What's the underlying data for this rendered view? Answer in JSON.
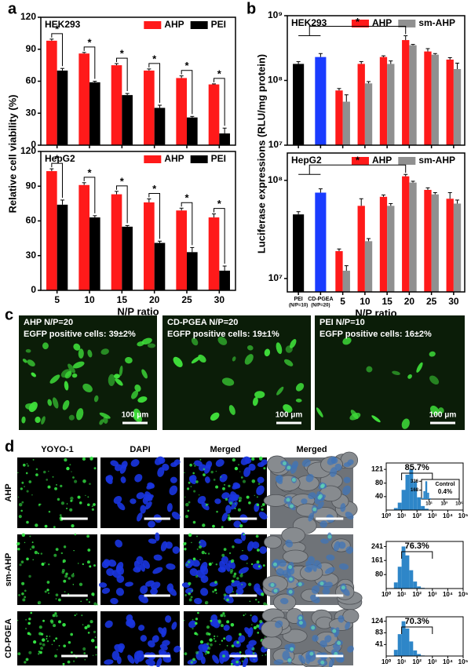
{
  "panel_labels": [
    "a",
    "b",
    "c",
    "d"
  ],
  "chart_data": [
    {
      "type": "bar",
      "title": "HEK293",
      "ylabel": "Relative cell viability (%)",
      "series": [
        {
          "name": "AHP",
          "color": "#ff1a1a",
          "values": [
            98,
            86,
            75,
            70,
            63,
            57
          ],
          "errors": [
            1.5,
            1,
            1.5,
            1.5,
            2,
            0.5
          ]
        },
        {
          "name": "PEI",
          "color": "#000000",
          "values": [
            70,
            59,
            47,
            35,
            26,
            11
          ],
          "errors": [
            2,
            1,
            1.5,
            2.5,
            1,
            5
          ]
        }
      ],
      "ylim": [
        0,
        120
      ],
      "yticks": [
        0,
        30,
        60,
        90,
        120
      ],
      "significance": [
        "*",
        "*",
        "*",
        "*",
        "*",
        "*"
      ],
      "legend": "upper right"
    },
    {
      "type": "bar",
      "title": "HepG2",
      "xlabel": "N/P ratio",
      "categories": [
        "5",
        "10",
        "15",
        "20",
        "25",
        "30"
      ],
      "series": [
        {
          "name": "AHP",
          "color": "#ff1a1a",
          "values": [
            103,
            91,
            83,
            76,
            69,
            63
          ],
          "errors": [
            2,
            2,
            2.5,
            3,
            2,
            3
          ]
        },
        {
          "name": "PEI",
          "color": "#000000",
          "values": [
            74,
            63,
            55,
            41,
            33,
            17
          ],
          "errors": [
            4,
            1.5,
            1,
            1.5,
            4,
            4
          ]
        }
      ],
      "ylim": [
        0,
        120
      ],
      "yticks": [
        0,
        30,
        60,
        90,
        120
      ],
      "significance": [
        "*",
        "*",
        "*",
        "*",
        "*",
        "*"
      ],
      "legend": "upper right"
    },
    {
      "type": "bar",
      "log": true,
      "title": "HEK293",
      "ylabel": "Luciferase expressions (RLU/mg protein)",
      "controls": {
        "colors": [
          "#000000",
          "#1a3cff"
        ],
        "values": [
          180000000,
          230000000
        ],
        "errors": [
          15000000,
          30000000
        ]
      },
      "series": [
        {
          "name": "AHP",
          "color": "#ff1a1a",
          "values": [
            null,
            null,
            70000000,
            180000000,
            230000000,
            420000000,
            280000000,
            210000000
          ],
          "errors": [
            null,
            null,
            5000000,
            15000000,
            10000000,
            70000000,
            30000000,
            15000000
          ]
        },
        {
          "name": "sm-AHP",
          "color": "#909090",
          "values": [
            null,
            null,
            47000000,
            90000000,
            180000000,
            350000000,
            250000000,
            150000000
          ],
          "errors": [
            null,
            null,
            13000000,
            6000000,
            20000000,
            10000000,
            10000000,
            35000000
          ]
        }
      ],
      "ylim": [
        10000000,
        1000000000
      ],
      "yticks": [
        {
          "value": 10000000,
          "label": "10⁷"
        },
        {
          "value": 100000000,
          "label": "10⁸"
        },
        {
          "value": 1000000000,
          "label": "10⁹"
        }
      ],
      "significance": [
        "*"
      ],
      "legend": "upper right"
    },
    {
      "type": "bar",
      "log": true,
      "title": "HepG2",
      "xlabel": "N/P ratio",
      "categories": [
        "PEI",
        "CD-PGEA",
        "5",
        "10",
        "15",
        "20",
        "25",
        "30"
      ],
      "category_notes": [
        "(N/P=10)",
        "(N/P=20)"
      ],
      "controls": {
        "colors": [
          "#000000",
          "#1a3cff"
        ],
        "values": [
          45000000,
          75000000
        ],
        "errors": [
          3000000,
          7000000
        ]
      },
      "series": [
        {
          "name": "AHP",
          "color": "#ff1a1a",
          "values": [
            null,
            null,
            19000000,
            55000000,
            68000000,
            110000000,
            80000000,
            65000000
          ],
          "errors": [
            null,
            null,
            1000000,
            10000000,
            3000000,
            5000000,
            4000000,
            10000000
          ]
        },
        {
          "name": "sm-AHP",
          "color": "#909090",
          "values": [
            null,
            null,
            12000000,
            24000000,
            55000000,
            95000000,
            72000000,
            58000000
          ],
          "errors": [
            null,
            null,
            1500000,
            1500000,
            3000000,
            3000000,
            3000000,
            5000000
          ]
        }
      ],
      "ylim": [
        7300000,
        190000000
      ],
      "yticks": [
        {
          "value": 10000000,
          "label": "10⁷"
        },
        {
          "value": 100000000,
          "label": "10⁸"
        }
      ],
      "significance": [
        "*"
      ],
      "legend": "upper right"
    },
    {
      "type": "histogram",
      "xlog": true,
      "color": "#2e86c8",
      "bins": [
        3.16,
        5.62,
        10,
        17.8,
        31.6,
        56.2,
        100,
        178,
        316,
        562,
        1000
      ],
      "counts": [
        6,
        22,
        60,
        105,
        121,
        85,
        38,
        12,
        4,
        1
      ],
      "xlim": [
        1,
        100000
      ],
      "xticks": [
        {
          "value": 1,
          "label": "10⁰"
        },
        {
          "value": 10,
          "label": "10¹"
        },
        {
          "value": 100,
          "label": "10²"
        },
        {
          "value": 1000,
          "label": "10³"
        },
        {
          "value": 10000,
          "label": "10⁴"
        },
        {
          "value": 100000,
          "label": "10⁵"
        }
      ],
      "ylim": [
        0,
        140
      ],
      "yticks": [
        40,
        80,
        121
      ],
      "gate": [
        10,
        1000
      ],
      "gate_label": "85.7%"
    },
    {
      "type": "histogram",
      "xlog": true,
      "color": "#2e86c8",
      "title": "Control",
      "bins": [
        1,
        1.78,
        3.16,
        5.62,
        10,
        17.8
      ],
      "counts": [
        20,
        150,
        336,
        120,
        15
      ],
      "xlim": [
        1,
        100000
      ],
      "xticks": [
        {
          "value": 10,
          "label": "10¹"
        },
        {
          "value": 1000,
          "label": "10³"
        },
        {
          "value": 100000,
          "label": "10⁵"
        }
      ],
      "ylim": [
        0,
        370
      ],
      "yticks": [
        168,
        336
      ],
      "annotation": "0.4%"
    },
    {
      "type": "histogram",
      "xlog": true,
      "color": "#2e86c8",
      "bins": [
        3.16,
        5.62,
        10,
        17.8,
        31.6,
        56.2,
        100,
        178,
        316,
        562,
        1000
      ],
      "counts": [
        35,
        125,
        241,
        190,
        105,
        40,
        12,
        4,
        1,
        0
      ],
      "xlim": [
        1,
        100000
      ],
      "xticks": [
        {
          "value": 1,
          "label": "10⁰"
        },
        {
          "value": 10,
          "label": "10¹"
        },
        {
          "value": 100,
          "label": "10²"
        },
        {
          "value": 1000,
          "label": "10³"
        },
        {
          "value": 10000,
          "label": "10⁴"
        },
        {
          "value": 100000,
          "label": "10⁵"
        }
      ],
      "ylim": [
        0,
        270
      ],
      "yticks": [
        80,
        161,
        241
      ],
      "gate": [
        10,
        1000
      ],
      "gate_label": "76.3%"
    },
    {
      "type": "histogram",
      "xlog": true,
      "color": "#2e86c8",
      "bins": [
        3.16,
        5.62,
        10,
        17.8,
        31.6,
        56.2,
        100,
        178,
        316,
        562,
        1000
      ],
      "counts": [
        22,
        78,
        124,
        98,
        52,
        20,
        7,
        2,
        1,
        0
      ],
      "xlim": [
        1,
        100000
      ],
      "xticks": [
        {
          "value": 1,
          "label": "10⁰"
        },
        {
          "value": 10,
          "label": "10¹"
        },
        {
          "value": 100,
          "label": "10²"
        },
        {
          "value": 1000,
          "label": "10³"
        },
        {
          "value": 10000,
          "label": "10⁴"
        },
        {
          "value": 100000,
          "label": "10⁵"
        }
      ],
      "ylim": [
        0,
        140
      ],
      "yticks": [
        41,
        83,
        124
      ],
      "gate": [
        10,
        1000
      ],
      "gate_label": "70.3%"
    }
  ],
  "panel_c": [
    {
      "title": "AHP N/P=20",
      "caption": "EGFP positive cells: 39±2%",
      "scale_bar": "100 μm"
    },
    {
      "title": "CD-PGEA N/P=20",
      "caption": "EGFP positive cells: 19±1%",
      "scale_bar": "100 μm"
    },
    {
      "title": "PEI N/P=10",
      "caption": "EGFP positive cells: 16±2%",
      "scale_bar": "100 μm"
    }
  ],
  "panel_d": {
    "columns": [
      "YOYO-1",
      "DAPI",
      "Merged",
      "Merged"
    ],
    "rows": [
      "AHP",
      "sm-AHP",
      "CD-PGEA"
    ]
  }
}
